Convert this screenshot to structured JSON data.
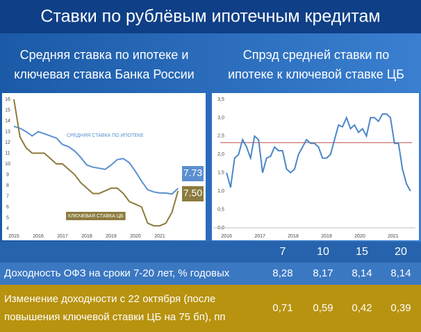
{
  "header": {
    "title": "Ставки по рублёвым ипотечным кредитам"
  },
  "chart_data": [
    {
      "type": "line",
      "title_lines": [
        "Средняя ставка по ипотеке и",
        "ключевая ставка Банка России"
      ],
      "x": [
        2015,
        2015.25,
        2015.5,
        2015.75,
        2016,
        2016.25,
        2016.5,
        2016.75,
        2017,
        2017.25,
        2017.5,
        2017.75,
        2018,
        2018.25,
        2018.5,
        2018.75,
        2019,
        2019.25,
        2019.5,
        2019.75,
        2020,
        2020.25,
        2020.5,
        2020.75,
        2021,
        2021.25,
        2021.5,
        2021.75
      ],
      "series": [
        {
          "name": "СРЕДНЯЯ СТАВКА ПО ИПОТЕКЕ",
          "color": "#5b8fd0",
          "last_label": "7.73",
          "values": [
            13.5,
            13.3,
            13.0,
            12.6,
            13.0,
            12.8,
            12.6,
            12.4,
            11.8,
            11.6,
            11.2,
            10.6,
            9.9,
            9.7,
            9.6,
            9.5,
            9.9,
            10.4,
            10.5,
            10.1,
            9.3,
            8.4,
            7.6,
            7.4,
            7.3,
            7.3,
            7.2,
            7.73
          ]
        },
        {
          "name": "КЛЮЧЕВАЯ СТАВКА ЦБ",
          "color": "#8c7b3e",
          "last_label": "7.50",
          "values": [
            16,
            12.5,
            11.5,
            11,
            11,
            11,
            10.5,
            10,
            10,
            9.5,
            9,
            8.25,
            7.75,
            7.25,
            7.25,
            7.5,
            7.75,
            7.75,
            7.25,
            6.5,
            6.25,
            6,
            4.5,
            4.25,
            4.25,
            4.5,
            5.5,
            7.5
          ]
        }
      ],
      "xlim": [
        2015,
        2022
      ],
      "xticks": [
        2015,
        2016,
        2017,
        2018,
        2019,
        2020,
        2021
      ],
      "ylim": [
        4,
        16
      ],
      "yticks": [
        4,
        5,
        6,
        7,
        8,
        9,
        10,
        11,
        12,
        13,
        14,
        15,
        16
      ]
    },
    {
      "type": "line",
      "title_lines": [
        "Спрэд средней ставки по",
        "ипотеке к ключевой ставке ЦБ"
      ],
      "x": [
        2016,
        2016.12,
        2016.24,
        2016.36,
        2016.48,
        2016.6,
        2016.72,
        2016.84,
        2016.96,
        2017.08,
        2017.2,
        2017.32,
        2017.44,
        2017.56,
        2017.68,
        2017.8,
        2017.92,
        2018.04,
        2018.16,
        2018.28,
        2018.4,
        2018.52,
        2018.64,
        2018.76,
        2018.88,
        2019,
        2019.12,
        2019.24,
        2019.36,
        2019.48,
        2019.6,
        2019.72,
        2019.84,
        2019.96,
        2020.08,
        2020.2,
        2020.32,
        2020.44,
        2020.56,
        2020.68,
        2020.8,
        2020.92,
        2021.04,
        2021.16,
        2021.28,
        2021.4,
        2021.52
      ],
      "series": [
        {
          "name": "Спрэд",
          "color": "#4a86c8",
          "values": [
            1.5,
            1.1,
            1.9,
            2.0,
            2.4,
            2.2,
            1.9,
            2.5,
            2.4,
            1.5,
            1.9,
            1.95,
            2.2,
            2.1,
            2.1,
            1.6,
            1.5,
            1.6,
            2.0,
            2.2,
            2.4,
            2.3,
            2.3,
            2.2,
            1.9,
            1.9,
            2.0,
            2.4,
            2.8,
            2.75,
            3.0,
            2.7,
            2.8,
            2.6,
            2.7,
            2.5,
            3.0,
            3.0,
            2.9,
            3.1,
            3.1,
            3.0,
            2.3,
            2.3,
            1.6,
            1.2,
            1.0
          ]
        }
      ],
      "reference_line": {
        "value": 2.32,
        "color": "#c0504d"
      },
      "xlim": [
        2015.6,
        2021.67
      ],
      "xticks": [
        2016,
        2017,
        2018,
        2019,
        2020,
        2021
      ],
      "ylim": [
        0,
        3.5
      ],
      "yticks": [
        {
          "value": 0,
          "label": "0,0"
        },
        {
          "value": 0.5,
          "label": "0,5"
        },
        {
          "value": 1,
          "label": "1,0"
        },
        {
          "value": 1.5,
          "label": "1,5"
        },
        {
          "value": 2,
          "label": "2,0"
        },
        {
          "value": 2.5,
          "label": "2,5"
        },
        {
          "value": 3,
          "label": "3,0"
        },
        {
          "value": 3.5,
          "label": "3,5"
        }
      ]
    }
  ],
  "table": {
    "columns": [
      "7",
      "10",
      "15",
      "20"
    ],
    "rows": [
      {
        "label_lines": [
          "Доходность ОФЗ на сроки 7-20 лет, % годовых"
        ],
        "values": [
          "8,28",
          "8,17",
          "8,14",
          "8,14"
        ]
      },
      {
        "label_lines": [
          "Изменение доходности с 22 октября (после",
          "повышения ключевой ставки ЦБ на 75 бп), пп"
        ],
        "values": [
          "0,71",
          "0,59",
          "0,42",
          "0,39"
        ]
      }
    ]
  }
}
